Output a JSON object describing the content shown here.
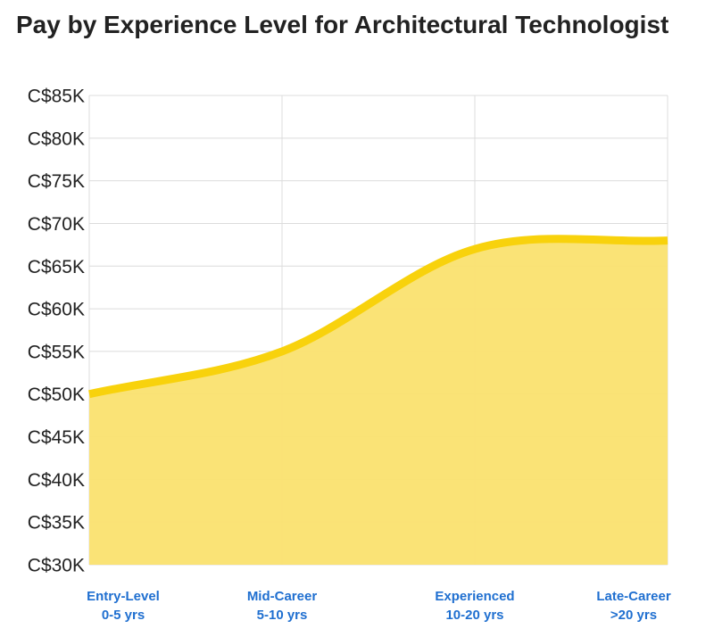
{
  "title": "Pay by Experience Level for Architectural Technologist",
  "colors": {
    "line": "#f8d20c",
    "fill": "#fae16f",
    "grid": "#dcdcdc",
    "xlabel": "#1f6fd0"
  },
  "chart_data": {
    "type": "area",
    "title": "Pay by Experience Level for Architectural Technologist",
    "xlabel": "",
    "ylabel": "",
    "categories": [
      {
        "name": "Entry-Level",
        "range": "0-5 yrs"
      },
      {
        "name": "Mid-Career",
        "range": "5-10 yrs"
      },
      {
        "name": "Experienced",
        "range": "10-20 yrs"
      },
      {
        "name": "Late-Career",
        "range": ">20 yrs"
      }
    ],
    "values": [
      50000,
      55000,
      67000,
      68000
    ],
    "ylim": [
      30000,
      85000
    ],
    "yticks": [
      {
        "value": 30000,
        "label": "C$30K"
      },
      {
        "value": 35000,
        "label": "C$35K"
      },
      {
        "value": 40000,
        "label": "C$40K"
      },
      {
        "value": 45000,
        "label": "C$45K"
      },
      {
        "value": 50000,
        "label": "C$50K"
      },
      {
        "value": 55000,
        "label": "C$55K"
      },
      {
        "value": 60000,
        "label": "C$60K"
      },
      {
        "value": 65000,
        "label": "C$65K"
      },
      {
        "value": 70000,
        "label": "C$70K"
      },
      {
        "value": 75000,
        "label": "C$75K"
      },
      {
        "value": 80000,
        "label": "C$80K"
      },
      {
        "value": 85000,
        "label": "C$85K"
      }
    ],
    "grid": true,
    "legend": "none"
  }
}
